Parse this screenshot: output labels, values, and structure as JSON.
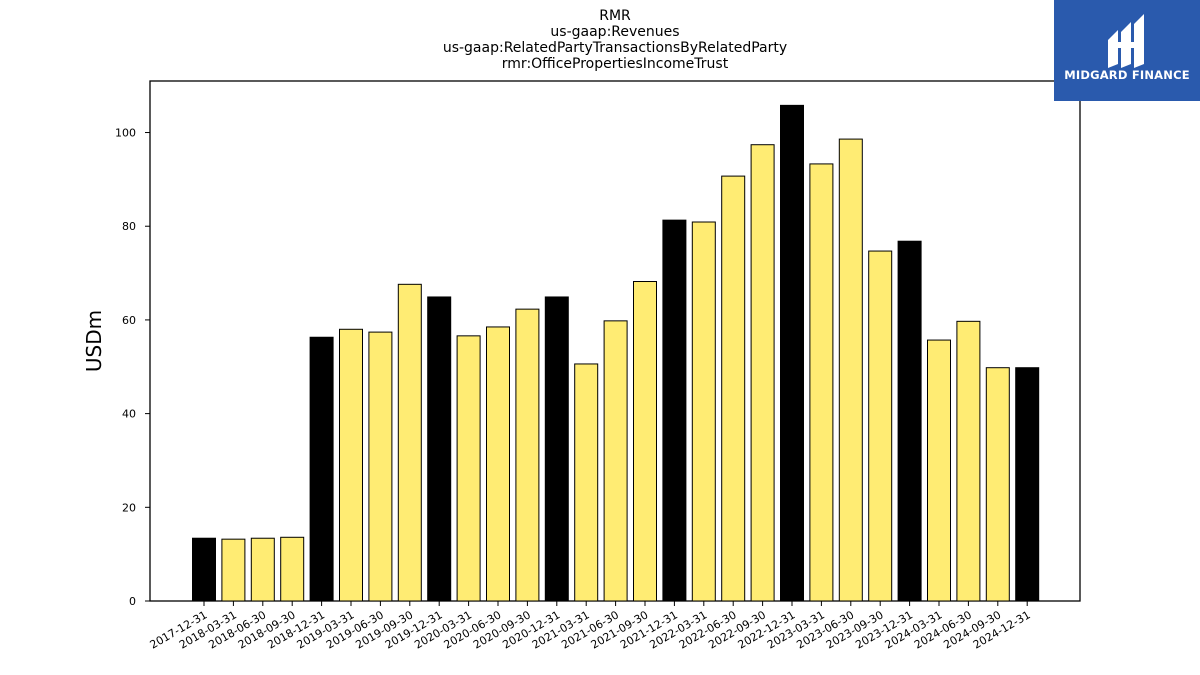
{
  "chart_data": {
    "type": "bar",
    "title_lines": [
      "RMR",
      "us-gaap:Revenues",
      "us-gaap:RelatedPartyTransactionsByRelatedParty",
      "rmr:OfficePropertiesIncomeTrust"
    ],
    "xlabel": "",
    "ylabel": "USDm",
    "ylim": [
      0,
      111
    ],
    "yticks": [
      0,
      20,
      40,
      60,
      80,
      100
    ],
    "categories": [
      "2017-12-31",
      "2018-03-31",
      "2018-06-30",
      "2018-09-30",
      "2018-12-31",
      "2019-03-31",
      "2019-06-30",
      "2019-09-30",
      "2019-12-31",
      "2020-03-31",
      "2020-06-30",
      "2020-09-30",
      "2020-12-31",
      "2021-03-31",
      "2021-06-30",
      "2021-09-30",
      "2021-12-31",
      "2022-03-31",
      "2022-06-30",
      "2022-09-30",
      "2022-12-31",
      "2023-03-31",
      "2023-06-30",
      "2023-09-30",
      "2023-12-31",
      "2024-03-31",
      "2024-06-30",
      "2024-09-30",
      "2024-12-31"
    ],
    "values": [
      13.4,
      13.2,
      13.4,
      13.6,
      56.3,
      58.0,
      57.4,
      67.6,
      64.9,
      56.6,
      58.5,
      62.3,
      64.9,
      50.6,
      59.8,
      68.2,
      81.3,
      80.9,
      90.7,
      97.4,
      105.8,
      93.3,
      98.6,
      74.7,
      76.8,
      55.7,
      59.7,
      49.8,
      49.8
    ],
    "year_end_colors": [
      "#000000",
      "#ffec73",
      "#ffec73",
      "#ffec73",
      "#000000",
      "#ffec73",
      "#ffec73",
      "#ffec73",
      "#000000",
      "#ffec73",
      "#ffec73",
      "#ffec73",
      "#000000",
      "#ffec73",
      "#ffec73",
      "#ffec73",
      "#000000",
      "#ffec73",
      "#ffec73",
      "#ffec73",
      "#000000",
      "#ffec73",
      "#ffec73",
      "#ffec73",
      "#000000",
      "#ffec73",
      "#ffec73",
      "#ffec73",
      "#000000"
    ],
    "grid": false,
    "legend": "none"
  },
  "colors": {
    "year_end_bar": "#000000",
    "quarter_bar": "#ffec73",
    "logo_bg": "#2a5aad"
  },
  "logo": {
    "text": "MIDGARD FINANCE",
    "icon": "midgard-logo-icon"
  }
}
